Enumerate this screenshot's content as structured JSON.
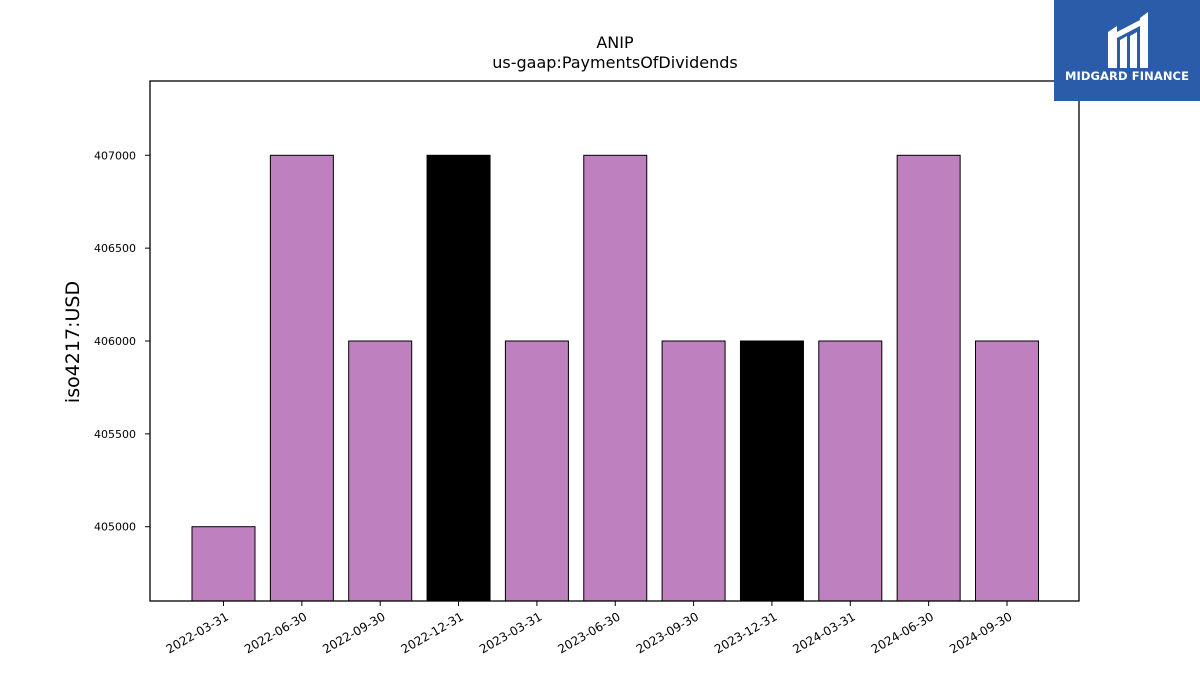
{
  "chart_data": {
    "type": "bar",
    "title": "ANIP",
    "subtitle": "us-gaap:PaymentsOfDividends",
    "xlabel": "",
    "ylabel": "iso4217:USD",
    "categories": [
      "2022-03-31",
      "2022-06-30",
      "2022-09-30",
      "2022-12-31",
      "2023-03-31",
      "2023-06-30",
      "2023-09-30",
      "2023-12-31",
      "2024-03-31",
      "2024-06-30",
      "2024-09-30"
    ],
    "values": [
      405000,
      407000,
      406000,
      407000,
      406000,
      407000,
      406000,
      406000,
      406000,
      407000,
      406000
    ],
    "highlighted": [
      false,
      false,
      false,
      true,
      false,
      false,
      false,
      true,
      false,
      false,
      false
    ],
    "yticks": [
      405000,
      405500,
      406000,
      406500,
      407000
    ],
    "ylim": [
      404600,
      407400
    ],
    "grid": false,
    "colors": {
      "bar": "#bf80bf",
      "highlight": "#000000",
      "edge": "#000000"
    }
  },
  "logo": {
    "text": "MIDGARD FINANCE",
    "icon": "midgard-logo-icon",
    "background": "#2a5caa"
  }
}
